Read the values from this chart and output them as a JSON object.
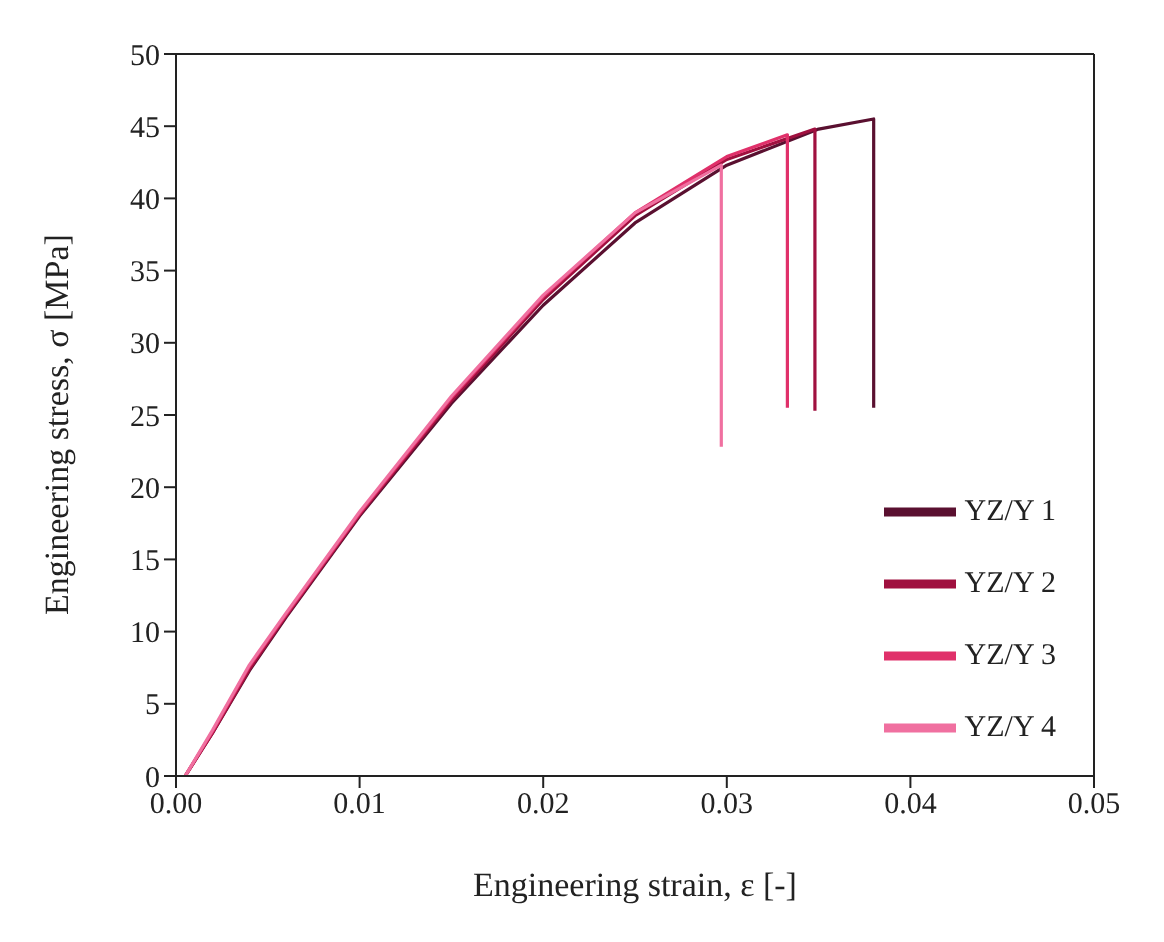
{
  "chart_data": {
    "type": "line",
    "xlabel": "Engineering strain, ε [-]",
    "ylabel": "Engineering stress, σ [MPa]",
    "xlim": [
      0,
      0.05
    ],
    "xticks": [
      {
        "value": 0,
        "label": "0.00"
      },
      {
        "value": 0.01,
        "label": "0.01"
      },
      {
        "value": 0.02,
        "label": "0.02"
      },
      {
        "value": 0.03,
        "label": "0.03"
      },
      {
        "value": 0.04,
        "label": "0.04"
      },
      {
        "value": 0.05,
        "label": "0.05"
      }
    ],
    "ylim": [
      0,
      50
    ],
    "yticks": [
      0,
      5,
      10,
      15,
      20,
      25,
      30,
      35,
      40,
      45,
      50
    ],
    "grid": false,
    "legend": "bottom right",
    "marker": "none",
    "line_style": "solid",
    "series": [
      {
        "name": "YZ/Y 1",
        "color": "#5a1030",
        "x": [
          0.0005,
          0.002,
          0.004,
          0.006,
          0.01,
          0.015,
          0.02,
          0.025,
          0.03,
          0.035,
          0.038,
          0.038
        ],
        "values": [
          0,
          3,
          7.3,
          11,
          18,
          25.8,
          32.6,
          38.3,
          42.3,
          44.8,
          45.5,
          25.5
        ]
      },
      {
        "name": "YZ/Y 2",
        "color": "#a0103f",
        "x": [
          0.0005,
          0.002,
          0.004,
          0.006,
          0.01,
          0.015,
          0.02,
          0.025,
          0.03,
          0.0348,
          0.0348
        ],
        "values": [
          0,
          3,
          7.4,
          11.1,
          18.1,
          26,
          33,
          38.8,
          42.7,
          44.8,
          25.3
        ]
      },
      {
        "name": "YZ/Y 3",
        "color": "#e0306a",
        "x": [
          0.0005,
          0.002,
          0.004,
          0.006,
          0.01,
          0.015,
          0.02,
          0.025,
          0.03,
          0.0333,
          0.0333
        ],
        "values": [
          0,
          3.1,
          7.6,
          11.2,
          18.2,
          26.2,
          33.2,
          39,
          42.9,
          44.4,
          25.5
        ]
      },
      {
        "name": "YZ/Y 4",
        "color": "#f070a0",
        "x": [
          0.0005,
          0.002,
          0.004,
          0.006,
          0.01,
          0.015,
          0.02,
          0.025,
          0.0297,
          0.0297
        ],
        "values": [
          0,
          3.2,
          7.7,
          11.3,
          18.3,
          26.3,
          33.3,
          39,
          42.3,
          22.8
        ]
      }
    ]
  }
}
